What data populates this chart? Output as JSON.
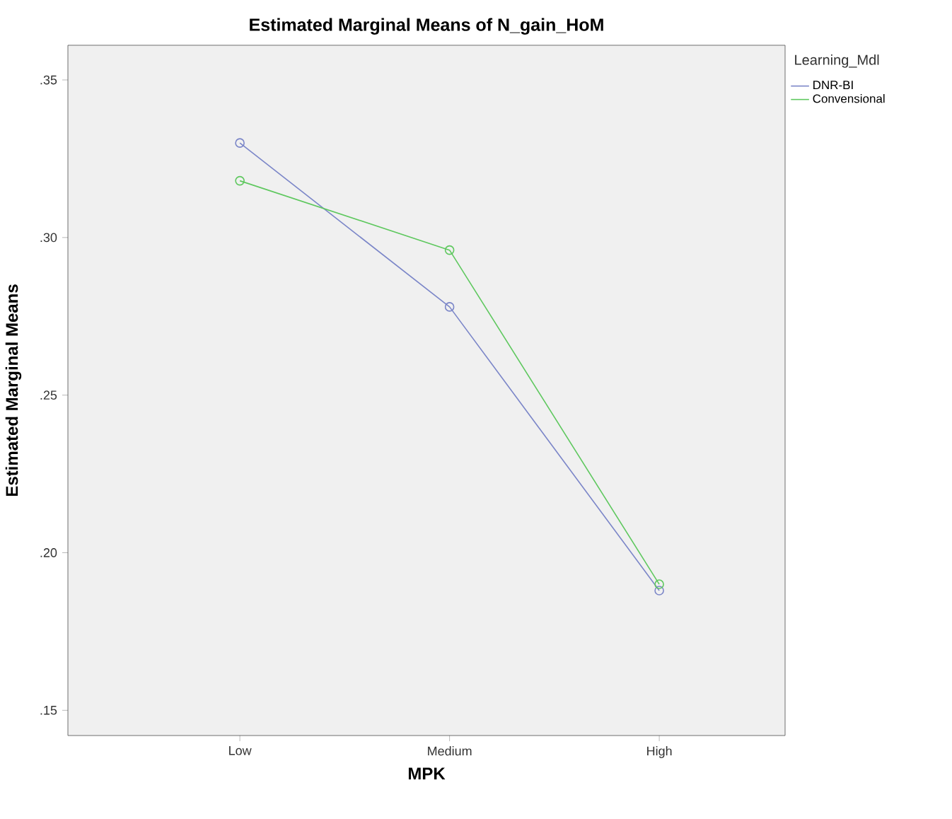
{
  "chart_data": {
    "type": "line",
    "title": "Estimated Marginal Means of N_gain_HoM",
    "xlabel": "MPK",
    "ylabel": "Estimated Marginal Means",
    "legend_title": "Learning_Mdl",
    "categories": [
      "Low",
      "Medium",
      "High"
    ],
    "series": [
      {
        "name": "DNR-BI",
        "color": "#7b86c8",
        "values": [
          0.33,
          0.278,
          0.188
        ]
      },
      {
        "name": "Convensional",
        "color": "#5fc85f",
        "values": [
          0.318,
          0.296,
          0.19
        ]
      }
    ],
    "ylim": [
      0.142,
      0.361
    ],
    "yticks": [
      {
        "value": 0.15,
        "label": ".15"
      },
      {
        "value": 0.2,
        "label": ".20"
      },
      {
        "value": 0.25,
        "label": ".25"
      },
      {
        "value": 0.3,
        "label": ".30"
      },
      {
        "value": 0.35,
        "label": ".35"
      }
    ],
    "legend": "right",
    "marker": "circle",
    "line_style": "solid"
  }
}
